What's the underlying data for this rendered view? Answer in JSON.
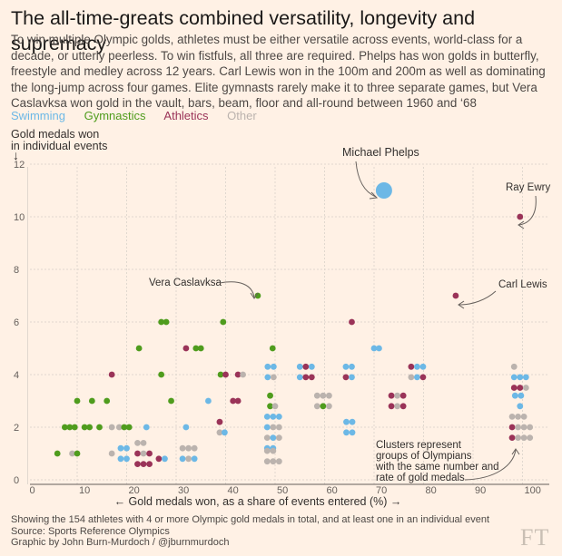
{
  "title": "The all-time-greats combined versatility, longevity and supremacy",
  "subtitle": "To win multiple Olympic golds, athletes must be either versatile across events, world-class for a decade, or utterly peerless. To win fistfuls, all three are required. Phelps has won golds in butterfly, freestyle and medley across 12 years. Carl Lewis won in the 100m and 200m as well as dominating the long-jump across four games. Elite gymnasts rarely make it to three separate games, but Vera Caslavksa won gold in the vault, bars, beam, floor and all-round between 1960 and ‘68",
  "legend": [
    {
      "key": "swimming",
      "label": "Swimming",
      "color": "#6cb8e6"
    },
    {
      "key": "gymnastics",
      "label": "Gymnastics",
      "color": "#4f9c1d"
    },
    {
      "key": "athletics",
      "label": "Athletics",
      "color": "#9a3358"
    },
    {
      "key": "other",
      "label": "Other",
      "color": "#bbb3ae"
    }
  ],
  "footer": {
    "note": "Showing the 154 athletes with 4 or more Olympic gold medals in total, and at least one in an individual event",
    "source": "Source: Sports Reference Olympics",
    "credit": "Graphic by John Burn-Murdoch / @jburnmurdoch",
    "logo": "FT"
  },
  "annotations": {
    "phelps": "Michael Phelps",
    "ewry": "Ray Ewry",
    "caslavska": "Vera Caslavksa",
    "lewis": "Carl Lewis",
    "clusters": [
      "Clusters represent",
      "groups of Olympians",
      "with the same number and",
      "rate of gold medals"
    ]
  },
  "chart_data": {
    "type": "scatter",
    "title": "The all-time-greats combined versatility, longevity and supremacy",
    "xlabel": "← Gold medals won, as a share of events entered (%) →",
    "ylabel_lines": [
      "Gold medals won",
      "in individual events"
    ],
    "ylabel_arrow": "↓",
    "xlim": [
      0,
      103
    ],
    "ylim": [
      0,
      12.5
    ],
    "xticks": [
      0,
      10,
      20,
      30,
      40,
      50,
      60,
      70,
      80,
      90,
      100
    ],
    "yticks": [
      0,
      2,
      4,
      6,
      8,
      10,
      12
    ],
    "grid": true,
    "categories": [
      "swimming",
      "gymnastics",
      "athletics",
      "other"
    ],
    "highlight": {
      "name": "Michael Phelps",
      "x": 72,
      "y": 11,
      "category": "swimming"
    },
    "points": [
      {
        "x": 99.5,
        "y": 10,
        "c": "athletics"
      },
      {
        "x": 86.5,
        "y": 7,
        "c": "athletics"
      },
      {
        "x": 46.5,
        "y": 7,
        "c": "gymnastics"
      },
      {
        "x": 27,
        "y": 6,
        "c": "gymnastics"
      },
      {
        "x": 28,
        "y": 6,
        "c": "gymnastics"
      },
      {
        "x": 39.5,
        "y": 6,
        "c": "gymnastics"
      },
      {
        "x": 65.5,
        "y": 6,
        "c": "athletics"
      },
      {
        "x": 22.5,
        "y": 5,
        "c": "gymnastics"
      },
      {
        "x": 32,
        "y": 5,
        "c": "athletics"
      },
      {
        "x": 34,
        "y": 5,
        "c": "gymnastics"
      },
      {
        "x": 35,
        "y": 5,
        "c": "gymnastics"
      },
      {
        "x": 49.5,
        "y": 5,
        "c": "gymnastics"
      },
      {
        "x": 70,
        "y": 5,
        "c": "swimming"
      },
      {
        "x": 71,
        "y": 5,
        "c": "swimming"
      },
      {
        "x": 17,
        "y": 4,
        "c": "athletics"
      },
      {
        "x": 27,
        "y": 4,
        "c": "gymnastics"
      },
      {
        "x": 39,
        "y": 4,
        "c": "gymnastics"
      },
      {
        "x": 40,
        "y": 4,
        "c": "athletics"
      },
      {
        "x": 42.5,
        "y": 4,
        "c": "athletics"
      },
      {
        "x": 43.5,
        "y": 4,
        "c": "other"
      },
      {
        "x": 48.5,
        "y": 4.3,
        "c": "swimming"
      },
      {
        "x": 49.7,
        "y": 4.3,
        "c": "swimming"
      },
      {
        "x": 48.5,
        "y": 3.9,
        "c": "swimming"
      },
      {
        "x": 49.7,
        "y": 3.9,
        "c": "other"
      },
      {
        "x": 55,
        "y": 4.3,
        "c": "swimming"
      },
      {
        "x": 56.2,
        "y": 4.3,
        "c": "athletics"
      },
      {
        "x": 57.4,
        "y": 4.3,
        "c": "swimming"
      },
      {
        "x": 55,
        "y": 3.9,
        "c": "swimming"
      },
      {
        "x": 56.2,
        "y": 3.9,
        "c": "athletics"
      },
      {
        "x": 57.4,
        "y": 3.9,
        "c": "athletics"
      },
      {
        "x": 64.3,
        "y": 4.3,
        "c": "swimming"
      },
      {
        "x": 65.5,
        "y": 4.3,
        "c": "swimming"
      },
      {
        "x": 64.3,
        "y": 3.9,
        "c": "athletics"
      },
      {
        "x": 65.5,
        "y": 3.9,
        "c": "swimming"
      },
      {
        "x": 77.5,
        "y": 4.3,
        "c": "athletics"
      },
      {
        "x": 78.7,
        "y": 4.3,
        "c": "swimming"
      },
      {
        "x": 79.9,
        "y": 4.3,
        "c": "swimming"
      },
      {
        "x": 77.5,
        "y": 3.9,
        "c": "other"
      },
      {
        "x": 78.7,
        "y": 3.9,
        "c": "swimming"
      },
      {
        "x": 79.9,
        "y": 3.9,
        "c": "athletics"
      },
      {
        "x": 98.3,
        "y": 4.3,
        "c": "other"
      },
      {
        "x": 98.3,
        "y": 3.9,
        "c": "swimming"
      },
      {
        "x": 99.5,
        "y": 3.9,
        "c": "swimming"
      },
      {
        "x": 100.7,
        "y": 3.9,
        "c": "swimming"
      },
      {
        "x": 98.3,
        "y": 3.5,
        "c": "athletics"
      },
      {
        "x": 99.5,
        "y": 3.5,
        "c": "athletics"
      },
      {
        "x": 100.7,
        "y": 3.5,
        "c": "other"
      },
      {
        "x": 10,
        "y": 3,
        "c": "gymnastics"
      },
      {
        "x": 13,
        "y": 3,
        "c": "gymnastics"
      },
      {
        "x": 16,
        "y": 3,
        "c": "gymnastics"
      },
      {
        "x": 29,
        "y": 3,
        "c": "gymnastics"
      },
      {
        "x": 36.5,
        "y": 3,
        "c": "swimming"
      },
      {
        "x": 41.5,
        "y": 3,
        "c": "athletics"
      },
      {
        "x": 42.5,
        "y": 3,
        "c": "athletics"
      },
      {
        "x": 49,
        "y": 3.2,
        "c": "gymnastics"
      },
      {
        "x": 49,
        "y": 2.8,
        "c": "gymnastics"
      },
      {
        "x": 50,
        "y": 2.8,
        "c": "other"
      },
      {
        "x": 58.5,
        "y": 3.2,
        "c": "other"
      },
      {
        "x": 59.7,
        "y": 3.2,
        "c": "other"
      },
      {
        "x": 60.9,
        "y": 3.2,
        "c": "other"
      },
      {
        "x": 58.5,
        "y": 2.8,
        "c": "other"
      },
      {
        "x": 59.7,
        "y": 2.8,
        "c": "gymnastics"
      },
      {
        "x": 60.9,
        "y": 2.8,
        "c": "other"
      },
      {
        "x": 73.5,
        "y": 3.2,
        "c": "athletics"
      },
      {
        "x": 74.7,
        "y": 3.2,
        "c": "other"
      },
      {
        "x": 75.9,
        "y": 3.2,
        "c": "athletics"
      },
      {
        "x": 73.5,
        "y": 2.8,
        "c": "athletics"
      },
      {
        "x": 74.7,
        "y": 2.8,
        "c": "other"
      },
      {
        "x": 75.9,
        "y": 2.8,
        "c": "athletics"
      },
      {
        "x": 98.5,
        "y": 3.2,
        "c": "swimming"
      },
      {
        "x": 99.7,
        "y": 3.2,
        "c": "swimming"
      },
      {
        "x": 99.5,
        "y": 2.8,
        "c": "swimming"
      },
      {
        "x": 7.5,
        "y": 2,
        "c": "gymnastics"
      },
      {
        "x": 8.5,
        "y": 2,
        "c": "gymnastics"
      },
      {
        "x": 9.5,
        "y": 2,
        "c": "gymnastics"
      },
      {
        "x": 11.5,
        "y": 2,
        "c": "gymnastics"
      },
      {
        "x": 12.5,
        "y": 2,
        "c": "gymnastics"
      },
      {
        "x": 14.5,
        "y": 2,
        "c": "gymnastics"
      },
      {
        "x": 17,
        "y": 2,
        "c": "other"
      },
      {
        "x": 18.5,
        "y": 2,
        "c": "other"
      },
      {
        "x": 19.5,
        "y": 2,
        "c": "gymnastics"
      },
      {
        "x": 20.5,
        "y": 2,
        "c": "gymnastics"
      },
      {
        "x": 24,
        "y": 2,
        "c": "swimming"
      },
      {
        "x": 32,
        "y": 2,
        "c": "swimming"
      },
      {
        "x": 38.8,
        "y": 2.2,
        "c": "athletics"
      },
      {
        "x": 38.8,
        "y": 1.8,
        "c": "other"
      },
      {
        "x": 39.8,
        "y": 1.8,
        "c": "swimming"
      },
      {
        "x": 48.4,
        "y": 2.4,
        "c": "swimming"
      },
      {
        "x": 49.6,
        "y": 2.4,
        "c": "swimming"
      },
      {
        "x": 50.8,
        "y": 2.4,
        "c": "swimming"
      },
      {
        "x": 48.4,
        "y": 2.0,
        "c": "swimming"
      },
      {
        "x": 49.6,
        "y": 2.0,
        "c": "other"
      },
      {
        "x": 50.8,
        "y": 2.0,
        "c": "other"
      },
      {
        "x": 48.4,
        "y": 1.6,
        "c": "other"
      },
      {
        "x": 49.6,
        "y": 1.6,
        "c": "swimming"
      },
      {
        "x": 50.8,
        "y": 1.6,
        "c": "other"
      },
      {
        "x": 48.4,
        "y": 1.2,
        "c": "swimming"
      },
      {
        "x": 49.6,
        "y": 1.2,
        "c": "swimming"
      },
      {
        "x": 64.4,
        "y": 2.2,
        "c": "swimming"
      },
      {
        "x": 65.6,
        "y": 2.2,
        "c": "swimming"
      },
      {
        "x": 64.4,
        "y": 1.8,
        "c": "swimming"
      },
      {
        "x": 65.6,
        "y": 1.8,
        "c": "swimming"
      },
      {
        "x": 97.9,
        "y": 2.4,
        "c": "other"
      },
      {
        "x": 99.1,
        "y": 2.4,
        "c": "other"
      },
      {
        "x": 100.3,
        "y": 2.4,
        "c": "other"
      },
      {
        "x": 97.9,
        "y": 2.0,
        "c": "athletics"
      },
      {
        "x": 99.1,
        "y": 2.0,
        "c": "other"
      },
      {
        "x": 100.3,
        "y": 2.0,
        "c": "other"
      },
      {
        "x": 101.5,
        "y": 2.0,
        "c": "other"
      },
      {
        "x": 97.9,
        "y": 1.6,
        "c": "athletics"
      },
      {
        "x": 99.1,
        "y": 1.6,
        "c": "other"
      },
      {
        "x": 100.3,
        "y": 1.6,
        "c": "other"
      },
      {
        "x": 101.5,
        "y": 1.6,
        "c": "other"
      },
      {
        "x": 6,
        "y": 1,
        "c": "gymnastics"
      },
      {
        "x": 9,
        "y": 1,
        "c": "other"
      },
      {
        "x": 10,
        "y": 1,
        "c": "gymnastics"
      },
      {
        "x": 17,
        "y": 1,
        "c": "other"
      },
      {
        "x": 18.8,
        "y": 1.2,
        "c": "swimming"
      },
      {
        "x": 20,
        "y": 1.2,
        "c": "swimming"
      },
      {
        "x": 18.8,
        "y": 0.8,
        "c": "swimming"
      },
      {
        "x": 20,
        "y": 0.8,
        "c": "swimming"
      },
      {
        "x": 22.2,
        "y": 1.4,
        "c": "other"
      },
      {
        "x": 23.4,
        "y": 1.4,
        "c": "other"
      },
      {
        "x": 22.2,
        "y": 1.0,
        "c": "athletics"
      },
      {
        "x": 23.4,
        "y": 1.0,
        "c": "other"
      },
      {
        "x": 24.6,
        "y": 1.0,
        "c": "athletics"
      },
      {
        "x": 22.2,
        "y": 0.6,
        "c": "athletics"
      },
      {
        "x": 23.4,
        "y": 0.6,
        "c": "athletics"
      },
      {
        "x": 24.6,
        "y": 0.6,
        "c": "athletics"
      },
      {
        "x": 26.5,
        "y": 0.8,
        "c": "athletics"
      },
      {
        "x": 27.7,
        "y": 0.8,
        "c": "swimming"
      },
      {
        "x": 31.3,
        "y": 1.2,
        "c": "other"
      },
      {
        "x": 32.5,
        "y": 1.2,
        "c": "other"
      },
      {
        "x": 33.7,
        "y": 1.2,
        "c": "other"
      },
      {
        "x": 31.3,
        "y": 0.8,
        "c": "swimming"
      },
      {
        "x": 32.5,
        "y": 0.8,
        "c": "other"
      },
      {
        "x": 33.7,
        "y": 0.8,
        "c": "swimming"
      },
      {
        "x": 48.4,
        "y": 1.1,
        "c": "other"
      },
      {
        "x": 49.6,
        "y": 1.1,
        "c": "other"
      },
      {
        "x": 48.4,
        "y": 0.7,
        "c": "other"
      },
      {
        "x": 49.6,
        "y": 0.7,
        "c": "other"
      },
      {
        "x": 50.8,
        "y": 0.7,
        "c": "other"
      }
    ]
  }
}
